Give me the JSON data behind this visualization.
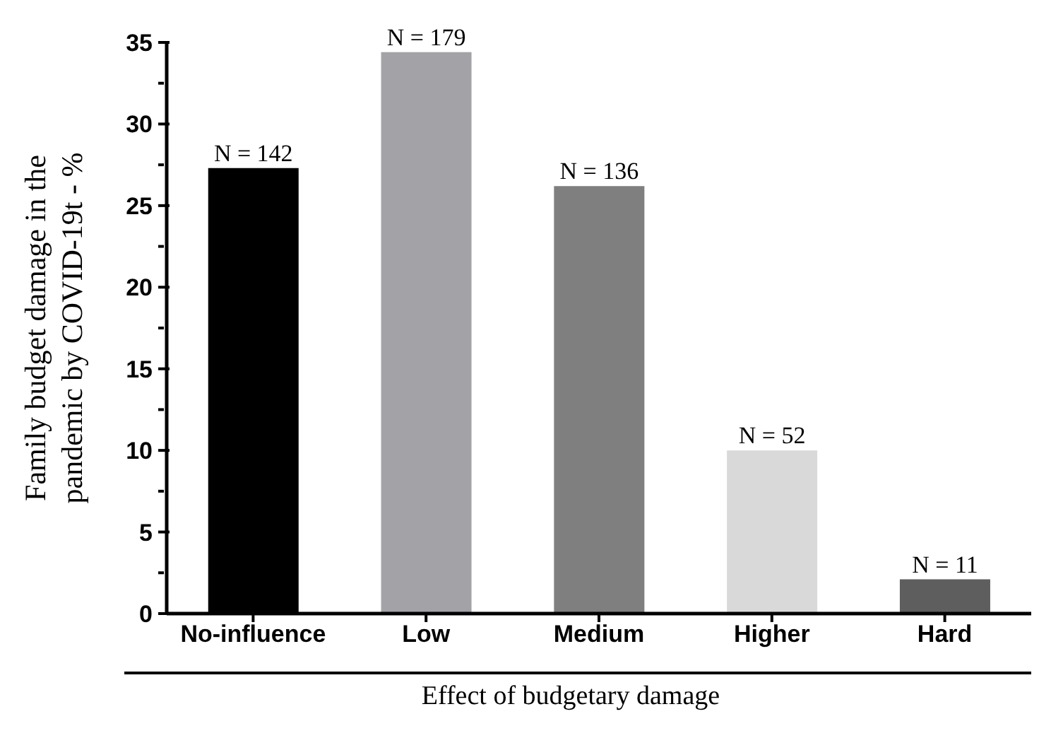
{
  "chart_data": {
    "type": "bar",
    "xlabel": "Effect of budgetary damage",
    "ylabel": "Family budget damage in the pandemic by COVID-19t - %",
    "categories": [
      "No-influence",
      "Low",
      "Medium",
      "Higher",
      "Hard"
    ],
    "values": [
      27.3,
      34.4,
      26.2,
      10.0,
      2.1
    ],
    "colors": [
      "#000000",
      "#a3a3a7",
      "#7f7f7f",
      "#d9d9d9",
      "#5e5e5e"
    ],
    "annotations": [
      {
        "text": "N = 142",
        "x": "No-influence",
        "y": 27.3
      },
      {
        "text": "N = 179",
        "x": "Low",
        "y": 34.4
      },
      {
        "text": "N = 136",
        "x": "Medium",
        "y": 26.2
      },
      {
        "text": "N = 52",
        "x": "Higher",
        "y": 10.0
      },
      {
        "text": "N = 11",
        "x": "Hard",
        "y": 2.1
      }
    ],
    "ylim": [
      0,
      35
    ],
    "yticks": [
      0,
      {
        "value": 2.5,
        "label": null
      },
      5,
      {
        "value": 7.5,
        "label": null
      },
      10,
      {
        "value": 12.5,
        "label": null
      },
      15,
      {
        "value": 17.5,
        "label": null
      },
      20,
      {
        "value": 22.5,
        "label": null
      },
      25,
      {
        "value": 27.5,
        "label": null
      },
      30,
      {
        "value": 32.5,
        "label": null
      },
      35
    ]
  }
}
